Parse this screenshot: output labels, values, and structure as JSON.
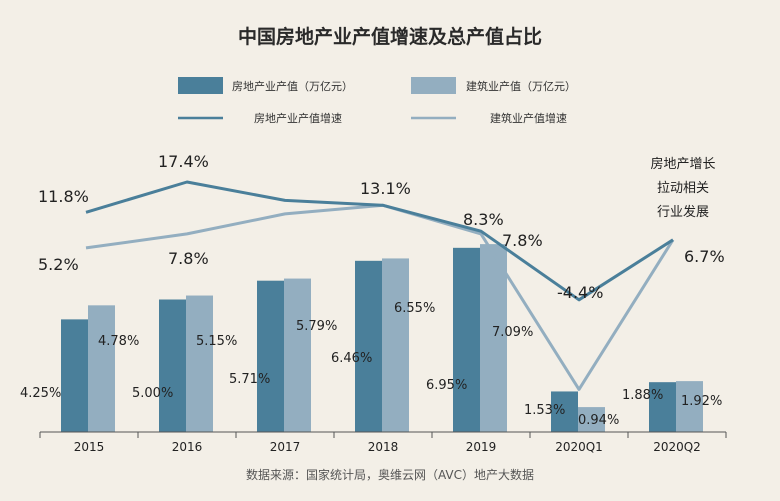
{
  "title": "中国房地产业产值增速及总产值占比",
  "source": "数据来源：国家统计局，奥维云网（AVC）地产大数据",
  "colors": {
    "re_bar": "#4a7f9a",
    "con_bar": "#93aec0",
    "re_line": "#4a7f9a",
    "con_line": "#93aec0",
    "axis": "#555555"
  },
  "legend": {
    "re_value": "房地产业产值（万亿元）",
    "con_value": "建筑业产值（万亿元）",
    "re_growth": "房地产业产值增速",
    "con_growth": "建筑业产值增速"
  },
  "annotation": [
    "房地产增长",
    "拉动相关",
    "行业发展"
  ],
  "chart_data": {
    "type": "bar",
    "title": "中国房地产业产值增速及总产值占比",
    "categories": [
      "2015",
      "2016",
      "2017",
      "2018",
      "2019",
      "2020Q1",
      "2020Q2"
    ],
    "series": [
      {
        "name": "房地产业产值（万亿元）",
        "type": "bar",
        "values": [
          4.25,
          5.0,
          5.71,
          6.46,
          6.95,
          1.53,
          1.88
        ],
        "labels": [
          "4.25%",
          "5.00%",
          "5.71%",
          "6.46%",
          "6.95%",
          "1.53%",
          "1.88%"
        ]
      },
      {
        "name": "建筑业产值（万亿元）",
        "type": "bar",
        "values": [
          4.78,
          5.15,
          5.79,
          6.55,
          7.09,
          0.94,
          1.92
        ],
        "labels": [
          "4.78%",
          "5.15%",
          "5.79%",
          "6.55%",
          "7.09%",
          "0.94%",
          "1.92%"
        ]
      },
      {
        "name": "房地产业产值增速",
        "type": "line",
        "values": [
          11.8,
          17.4,
          14.0,
          13.1,
          8.3,
          -4.4,
          6.7
        ],
        "labels": [
          "11.8%",
          "17.4%",
          "",
          "13.1%",
          "8.3%",
          "-4.4%",
          "6.7%"
        ]
      },
      {
        "name": "建筑业产值增速",
        "type": "line",
        "values": [
          5.2,
          7.8,
          11.5,
          13.1,
          7.8,
          -21.0,
          6.7
        ],
        "labels": [
          "5.2%",
          "7.8%",
          "",
          "",
          "7.8%",
          "",
          ""
        ]
      }
    ],
    "legend_position": "top",
    "grid": false
  }
}
